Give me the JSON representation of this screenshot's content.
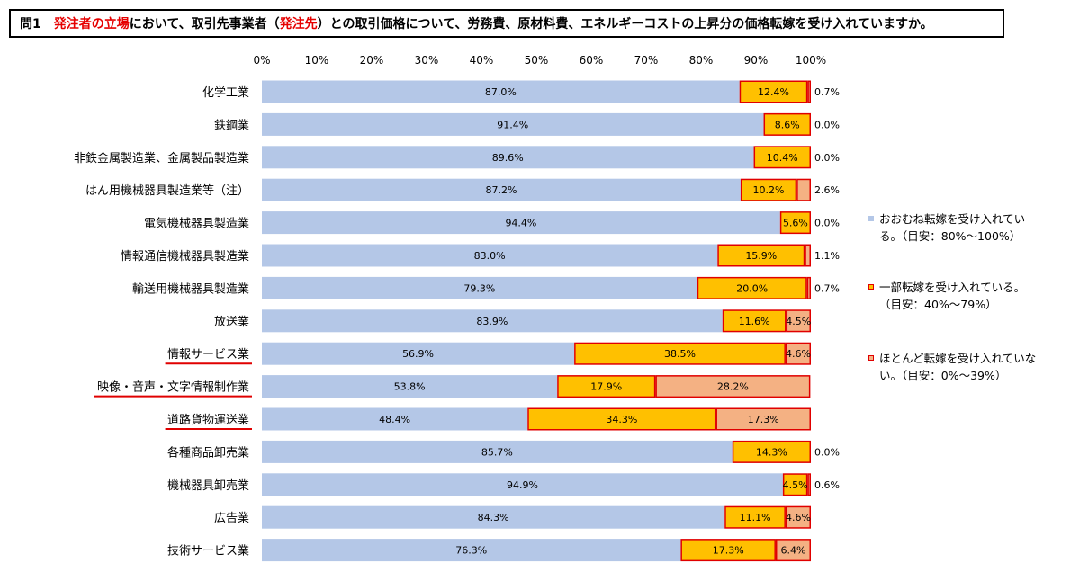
{
  "header": {
    "prefix": "問1",
    "parts": [
      {
        "text": "発注者の立場",
        "highlight": true
      },
      {
        "text": "において、取引先事業者（",
        "highlight": false
      },
      {
        "text": "発注先",
        "highlight": true
      },
      {
        "text": "）との取引価格について、労務費、原材料費、エネルギーコストの上昇分の価格転嫁を受け入れていますか。",
        "highlight": false
      }
    ]
  },
  "colors": {
    "full": "#b4c7e7",
    "partial": "#ffc000",
    "partial_border": "#e00000",
    "none": "#f4b183",
    "none_border": "#e00000",
    "underline": "#e00000"
  },
  "legend": [
    {
      "line1": "おおむね転嫁を受け入れてい",
      "line2": "る。（目安：80%～100%）",
      "color": "#b4c7e7",
      "border": "#b4c7e7"
    },
    {
      "line1": "一部転嫁を受け入れている。",
      "line2": "（目安：40%～79%）",
      "color": "#ffc000",
      "border": "#e00000"
    },
    {
      "line1": "ほとんど転嫁を受け入れていな",
      "line2": "い。（目安：0%～39%）",
      "color": "#f4b183",
      "border": "#e00000"
    }
  ],
  "chart_data": {
    "type": "bar",
    "orientation": "horizontal",
    "stacked": true,
    "xlim": [
      0,
      100
    ],
    "ticks": [
      "0%",
      "10%",
      "20%",
      "30%",
      "40%",
      "50%",
      "60%",
      "70%",
      "80%",
      "90%",
      "100%"
    ],
    "categories": [
      "化学工業",
      "鉄鋼業",
      "非鉄金属製造業、金属製品製造業",
      "はん用機械器具製造業等（注）",
      "電気機械器具製造業",
      "情報通信機械器具製造業",
      "輸送用機械器具製造業",
      "放送業",
      "情報サービス業",
      "映像・音声・文字情報制作業",
      "道路貨物運送業",
      "各種商品卸売業",
      "機械器具卸売業",
      "広告業",
      "技術サービス業"
    ],
    "underlined": [
      false,
      false,
      false,
      false,
      false,
      false,
      false,
      false,
      true,
      true,
      true,
      false,
      false,
      false,
      false
    ],
    "series": [
      {
        "values": [
          87.0,
          91.4,
          89.6,
          87.2,
          94.4,
          83.0,
          79.3,
          83.9,
          56.9,
          53.8,
          48.4,
          85.7,
          94.9,
          84.3,
          76.3
        ]
      },
      {
        "values": [
          12.4,
          8.6,
          10.4,
          10.2,
          5.6,
          15.9,
          20.0,
          11.6,
          38.5,
          17.9,
          34.3,
          14.3,
          4.5,
          11.1,
          17.3
        ]
      },
      {
        "values": [
          0.7,
          0.0,
          0.0,
          2.6,
          0.0,
          1.1,
          0.7,
          4.5,
          4.6,
          28.2,
          17.3,
          0.0,
          0.6,
          4.6,
          6.4
        ]
      }
    ],
    "labels": [
      [
        "87.0%",
        "91.4%",
        "89.6%",
        "87.2%",
        "94.4%",
        "83.0%",
        "79.3%",
        "83.9%",
        "56.9%",
        "53.8%",
        "48.4%",
        "85.7%",
        "94.9%",
        "84.3%",
        "76.3%"
      ],
      [
        "12.4%",
        "8.6%",
        "10.4%",
        "10.2%",
        "5.6%",
        "15.9%",
        "20.0%",
        "11.6%",
        "38.5%",
        "17.9%",
        "34.3%",
        "14.3%",
        "4.5%",
        "11.1%",
        "17.3%"
      ],
      [
        "0.7%",
        "0.0%",
        "0.0%",
        "2.6%",
        "0.0%",
        "1.1%",
        "0.7%",
        "4.5%",
        "4.6%",
        "28.2%",
        "17.3%",
        "0.0%",
        "0.6%",
        "4.6%",
        "6.4%"
      ]
    ],
    "label_outside": [
      true,
      true,
      true,
      true,
      true,
      true,
      true,
      false,
      false,
      false,
      false,
      true,
      true,
      false,
      false
    ],
    "legend_position": "right"
  }
}
